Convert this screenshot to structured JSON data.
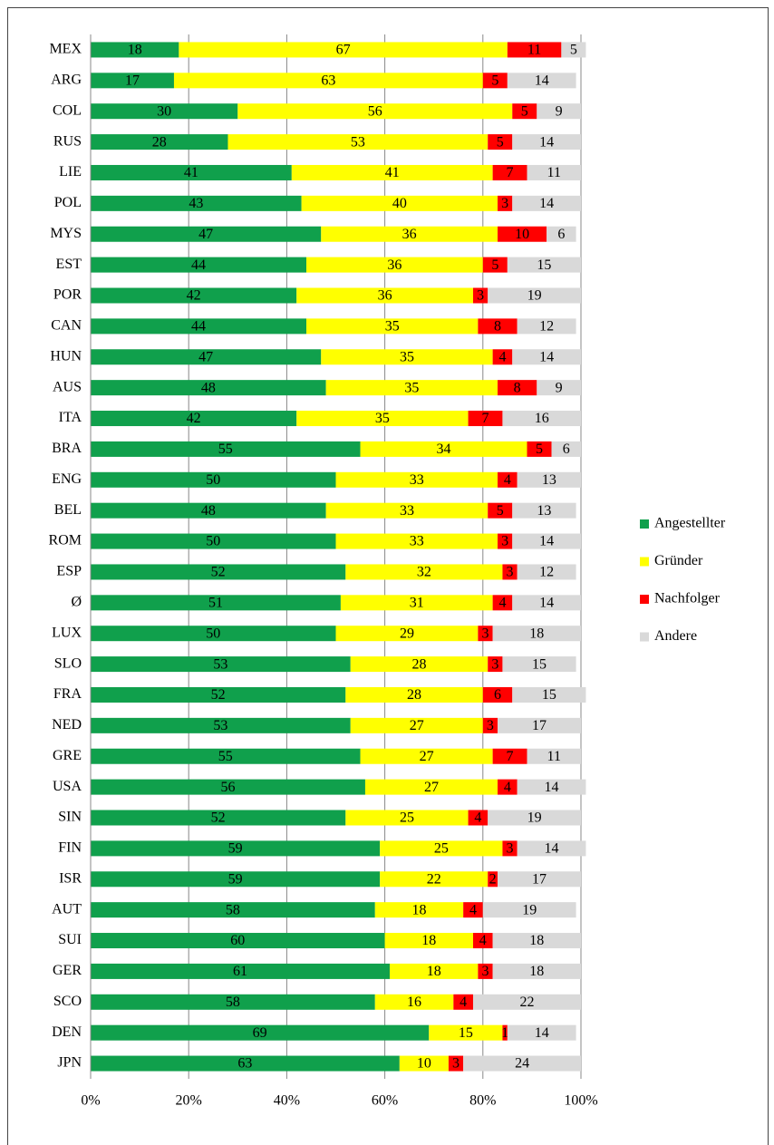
{
  "chart_data": {
    "type": "stacked-bar-horizontal",
    "categories": [
      "MEX",
      "ARG",
      "COL",
      "RUS",
      "LIE",
      "POL",
      "MYS",
      "EST",
      "POR",
      "CAN",
      "HUN",
      "AUS",
      "ITA",
      "BRA",
      "ENG",
      "BEL",
      "ROM",
      "ESP",
      "Ø",
      "LUX",
      "SLO",
      "FRA",
      "NED",
      "GRE",
      "USA",
      "SIN",
      "FIN",
      "ISR",
      "AUT",
      "SUI",
      "GER",
      "SCO",
      "DEN",
      "JPN"
    ],
    "series": [
      {
        "name": "Angestellter",
        "color": "#10a04c",
        "values": [
          18,
          17,
          30,
          28,
          41,
          43,
          47,
          44,
          42,
          44,
          47,
          48,
          42,
          55,
          50,
          48,
          50,
          52,
          51,
          50,
          53,
          52,
          53,
          55,
          56,
          52,
          59,
          59,
          58,
          60,
          61,
          58,
          69,
          63
        ]
      },
      {
        "name": "Gründer",
        "color": "#ffff00",
        "values": [
          67,
          63,
          56,
          53,
          41,
          40,
          36,
          36,
          36,
          35,
          35,
          35,
          35,
          34,
          33,
          33,
          33,
          32,
          31,
          29,
          28,
          28,
          27,
          27,
          27,
          25,
          25,
          22,
          18,
          18,
          18,
          16,
          15,
          10
        ]
      },
      {
        "name": "Nachfolger",
        "color": "#ff0000",
        "values": [
          11,
          5,
          5,
          5,
          7,
          3,
          10,
          5,
          3,
          8,
          4,
          8,
          7,
          5,
          4,
          5,
          3,
          3,
          4,
          3,
          3,
          6,
          3,
          7,
          4,
          4,
          3,
          2,
          4,
          4,
          3,
          4,
          1,
          3
        ]
      },
      {
        "name": "Andere",
        "color": "#d9d9d9",
        "values": [
          5,
          14,
          9,
          14,
          11,
          14,
          6,
          15,
          19,
          12,
          14,
          9,
          16,
          6,
          13,
          13,
          14,
          12,
          14,
          18,
          15,
          15,
          17,
          11,
          14,
          19,
          14,
          17,
          19,
          18,
          18,
          22,
          14,
          24
        ]
      }
    ],
    "xlim": [
      0,
      100
    ],
    "xticks": [
      {
        "value": 0,
        "label": "0%"
      },
      {
        "value": 20,
        "label": "20%"
      },
      {
        "value": 40,
        "label": "40%"
      },
      {
        "value": 60,
        "label": "60%"
      },
      {
        "value": 80,
        "label": "80%"
      },
      {
        "value": 100,
        "label": "100%"
      }
    ],
    "grid": true,
    "legend": "right"
  }
}
